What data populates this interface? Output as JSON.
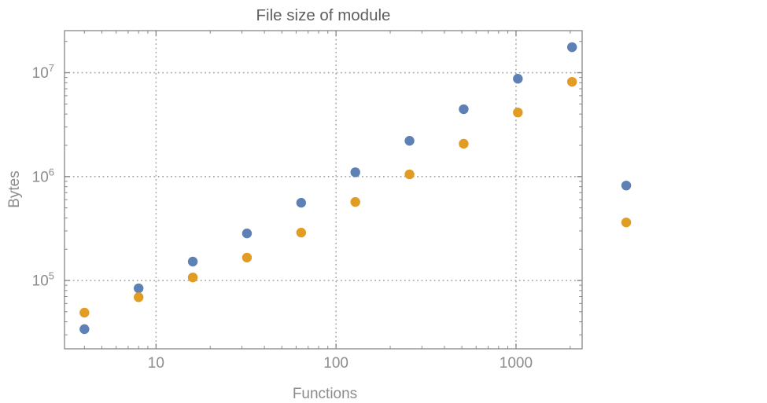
{
  "colors": {
    "series_blue": "#5e81b5",
    "series_orange": "#e19c24",
    "frame": "#878787",
    "grid": "#a8a8a8",
    "labels": "#8c8c8c",
    "title": "#5f5f5f"
  },
  "chart_data": {
    "type": "scatter",
    "title": "File size of module",
    "xlabel": "Functions",
    "ylabel": "Bytes",
    "x_scale": "log",
    "y_scale": "log",
    "xlim": [
      3.1,
      2330
    ],
    "ylim": [
      22000,
      25400000
    ],
    "x_major_ticks": [
      10,
      100,
      1000
    ],
    "x_tick_labels": [
      "10",
      "100",
      "1000"
    ],
    "y_major_ticks": [
      100000,
      1000000,
      10000000
    ],
    "y_tick_exponents": [
      "5",
      "6",
      "7"
    ],
    "grid": "dotted gridlines at major ticks, framed axes with inward minor ticks on all four sides",
    "legend_position": "none",
    "x": [
      4,
      8,
      16,
      32,
      64,
      128,
      256,
      512,
      1024,
      2048,
      4096
    ],
    "series": [
      {
        "name": "series-1-blue",
        "color": "#5e81b5",
        "values": [
          34000,
          84000,
          152000,
          284000,
          560000,
          1100000,
          2210000,
          4450000,
          8750000,
          17600000,
          820000
        ]
      },
      {
        "name": "series-2-orange",
        "color": "#e19c24",
        "values": [
          49000,
          69000,
          107000,
          166000,
          289000,
          570000,
          1050000,
          2070000,
          4140000,
          8170000,
          362000
        ]
      }
    ],
    "clipping_note": "points at x=4096 are rendered outside the right edge of the plot frame"
  }
}
